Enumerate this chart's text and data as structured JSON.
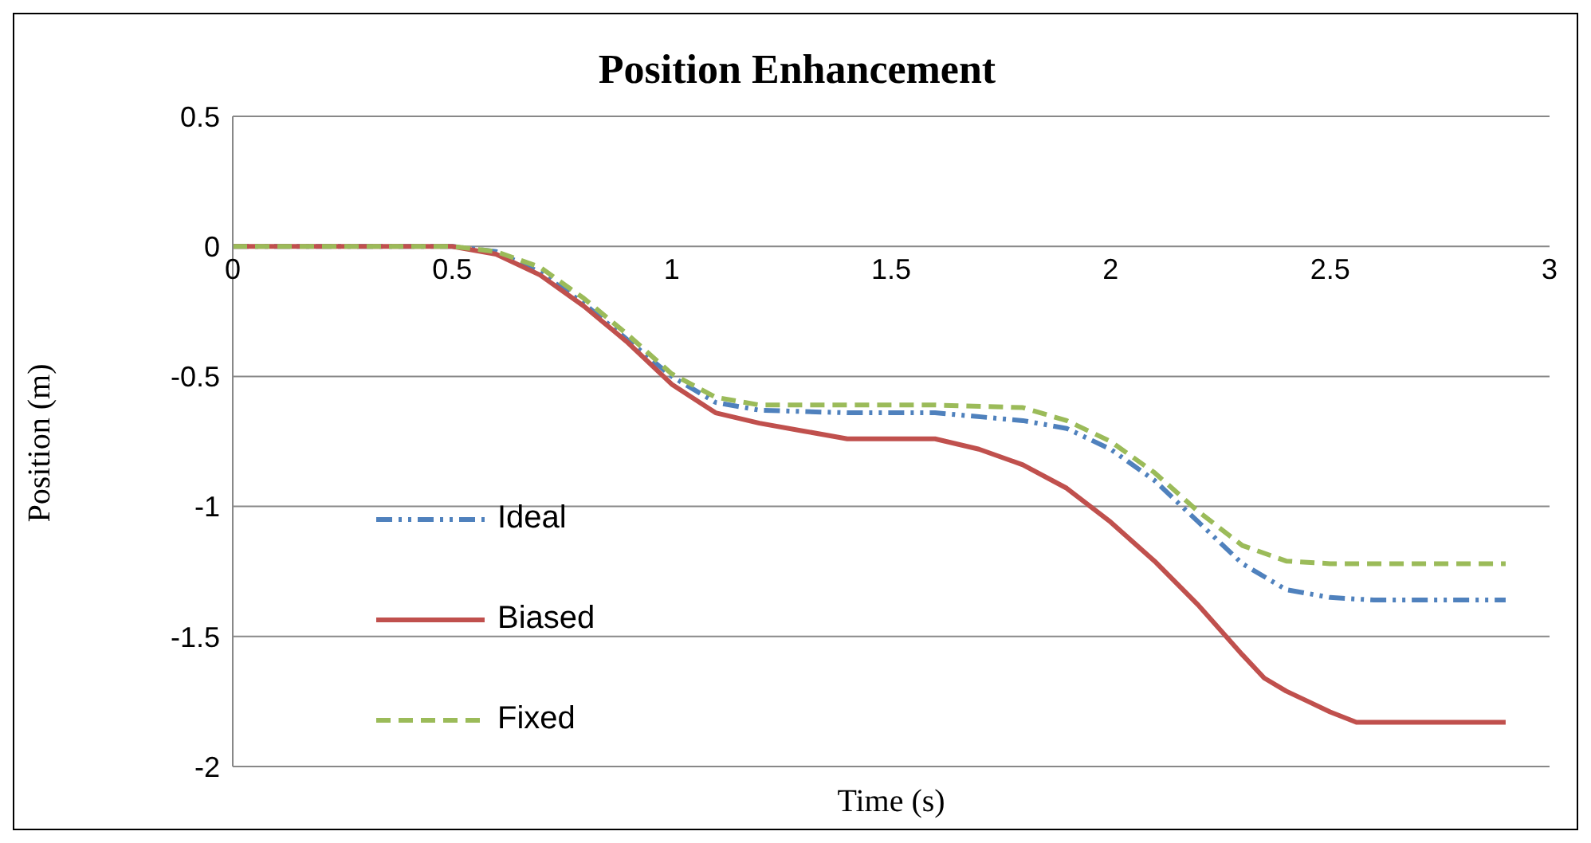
{
  "chart_data": {
    "type": "line",
    "title": "Position  Enhancement",
    "xlabel": "Time (s)",
    "ylabel": "Position (m)",
    "xlim": [
      0,
      3
    ],
    "xticks": [
      0,
      0.5,
      1,
      1.5,
      2,
      2.5,
      3
    ],
    "ylim": [
      -2,
      0.5
    ],
    "yticks": [
      -2,
      -1.5,
      -1,
      -0.5,
      0,
      0.5
    ],
    "grid": "y",
    "legend": "left",
    "marker": "none",
    "series": [
      {
        "name": "Ideal",
        "color": "#4f81bd",
        "line_style": "dashdot",
        "x": [
          0,
          0.5,
          0.6,
          0.7,
          0.8,
          0.9,
          1.0,
          1.1,
          1.2,
          1.4,
          1.6,
          1.8,
          1.9,
          2.0,
          2.1,
          2.2,
          2.3,
          2.4,
          2.5,
          2.6,
          2.9
        ],
        "values": [
          0,
          0,
          -0.02,
          -0.1,
          -0.22,
          -0.36,
          -0.5,
          -0.6,
          -0.63,
          -0.64,
          -0.64,
          -0.67,
          -0.7,
          -0.78,
          -0.9,
          -1.06,
          -1.22,
          -1.32,
          -1.35,
          -1.36,
          -1.36
        ]
      },
      {
        "name": "Biased",
        "color": "#c0504d",
        "line_style": "solid",
        "x": [
          0,
          0.5,
          0.6,
          0.7,
          0.8,
          0.9,
          1.0,
          1.1,
          1.2,
          1.3,
          1.4,
          1.6,
          1.7,
          1.8,
          1.9,
          2.0,
          2.1,
          2.2,
          2.3,
          2.35,
          2.4,
          2.45,
          2.5,
          2.56,
          2.9
        ],
        "values": [
          0,
          0,
          -0.03,
          -0.11,
          -0.23,
          -0.37,
          -0.53,
          -0.64,
          -0.68,
          -0.71,
          -0.74,
          -0.74,
          -0.78,
          -0.84,
          -0.93,
          -1.06,
          -1.21,
          -1.38,
          -1.57,
          -1.66,
          -1.71,
          -1.75,
          -1.79,
          -1.83,
          -1.83
        ]
      },
      {
        "name": "Fixed",
        "color": "#9bbb59",
        "line_style": "dashed",
        "x": [
          0,
          0.5,
          0.6,
          0.7,
          0.8,
          0.9,
          1.0,
          1.1,
          1.2,
          1.4,
          1.6,
          1.8,
          1.9,
          2.0,
          2.1,
          2.2,
          2.3,
          2.4,
          2.5,
          2.9
        ],
        "values": [
          0,
          0,
          -0.02,
          -0.08,
          -0.2,
          -0.34,
          -0.49,
          -0.58,
          -0.61,
          -0.61,
          -0.61,
          -0.62,
          -0.67,
          -0.75,
          -0.87,
          -1.02,
          -1.15,
          -1.21,
          -1.22,
          -1.22
        ]
      }
    ]
  }
}
